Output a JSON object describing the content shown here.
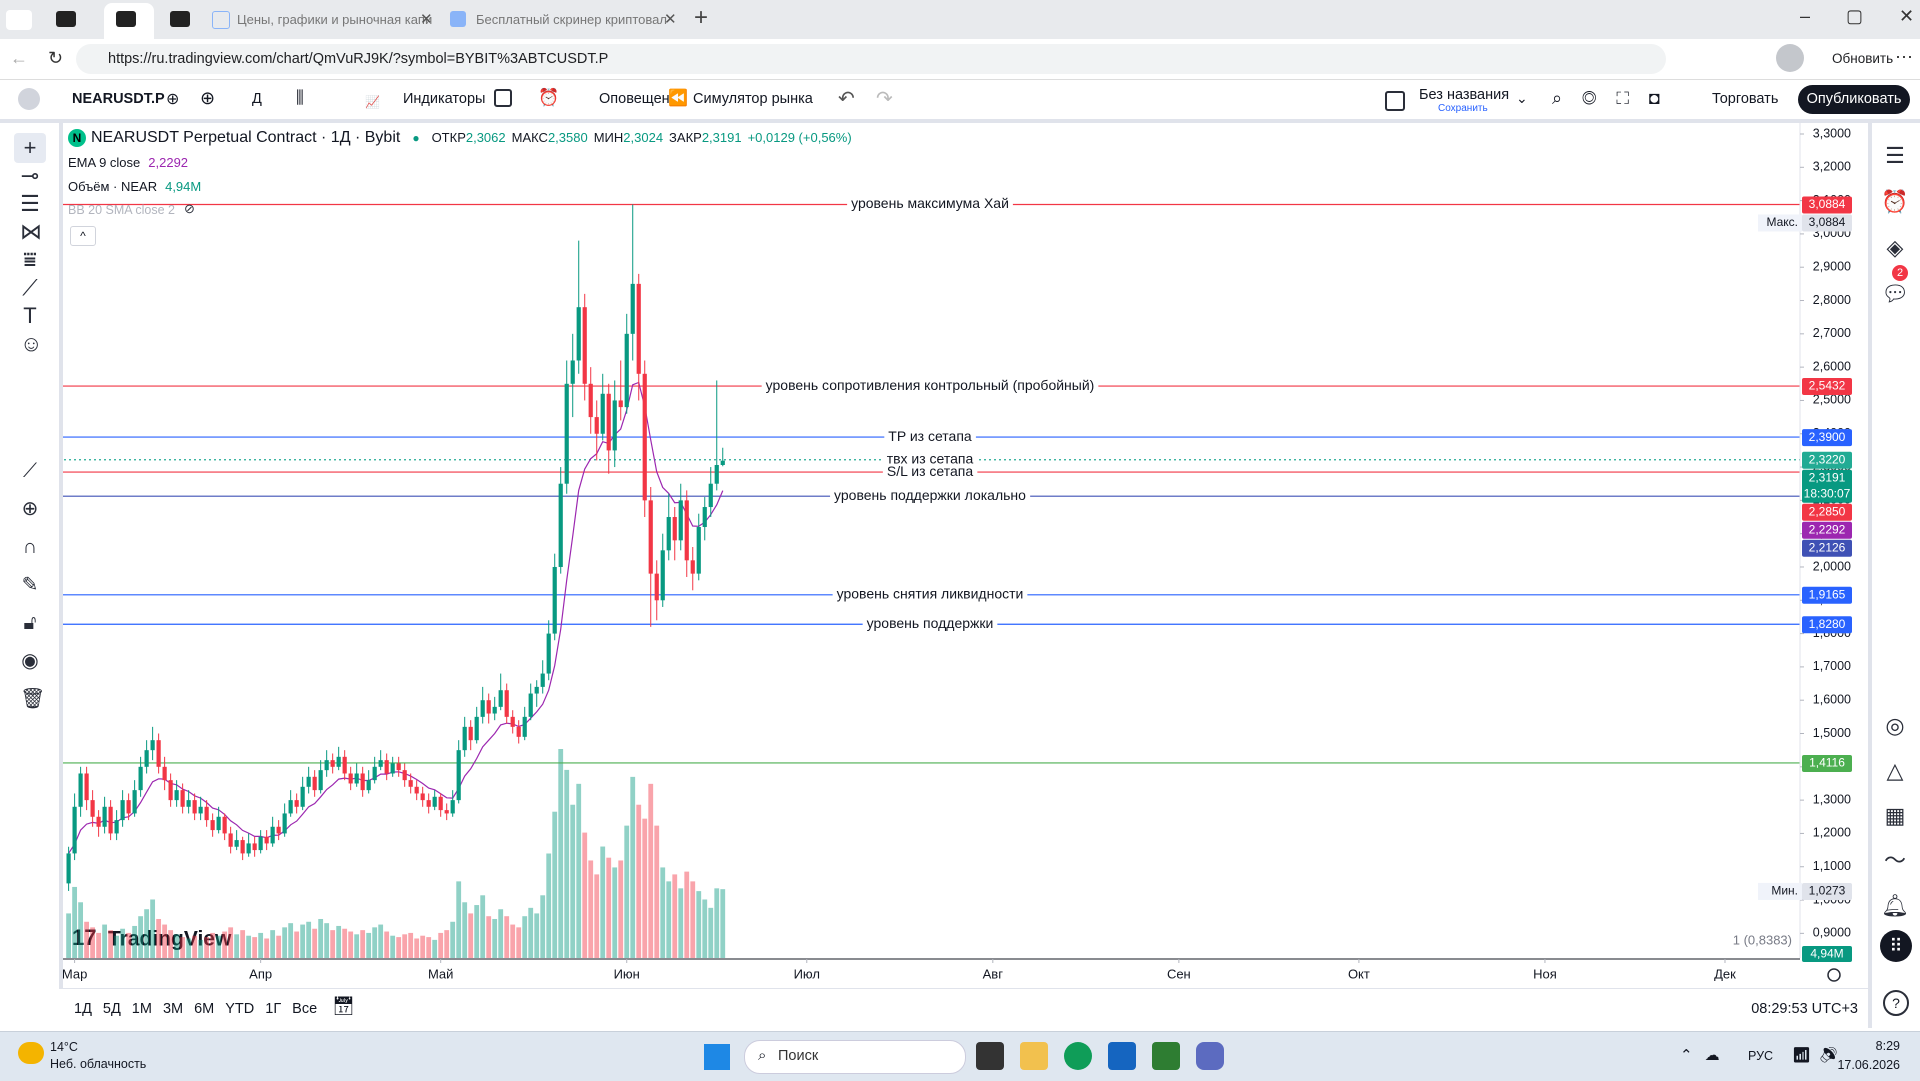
{
  "browser": {
    "tabs": [
      "Цены, графики и рыночная капи",
      "Бесплатный скринер криптовал"
    ],
    "url": "https://ru.tradingview.com/chart/QmVuRJ9K/?symbol=BYBIT%3ABTCUSDT.P",
    "update": "Обновить"
  },
  "toolbar": {
    "symbol": "NEARUSDT.P",
    "interval": "Д",
    "indicators": "Индикаторы",
    "alerts": "Оповещения",
    "replay": "Симулятор рынка",
    "layout_name": "Без названия",
    "save": "Сохранить",
    "trade": "Торговать",
    "publish": "Опубликовать"
  },
  "legend": {
    "title": "NEARUSDT Perpetual Contract · 1Д · Bybit",
    "open_label": "ОТКР",
    "open": "2,3062",
    "high_label": "МАКС",
    "high": "2,3580",
    "low_label": "МИН",
    "low": "2,3024",
    "close_label": "ЗАКР",
    "close": "2,3191",
    "change": "+0,0129 (+0,56%)",
    "ema": "EMA 9 close",
    "ema_value": "2,2292",
    "volume": "Объём · NEAR",
    "volume_value": "4,94M",
    "bb": "BB 20 SMA close 2"
  },
  "chart_data": {
    "type": "candlestick",
    "watermark": "TradingView",
    "up_color": "#089981",
    "down_color": "#f23645",
    "xlim": [
      -1.6,
      288.5
    ],
    "xticks": [
      {
        "value": 1,
        "label": "Мар"
      },
      {
        "value": 32,
        "label": "Апр"
      },
      {
        "value": 62,
        "label": "Май"
      },
      {
        "value": 93,
        "label": "Июн"
      },
      {
        "value": 123,
        "label": "Июл"
      },
      {
        "value": 154,
        "label": "Авг"
      },
      {
        "value": 185,
        "label": "Сен"
      },
      {
        "value": 215,
        "label": "Окт"
      },
      {
        "value": 246,
        "label": "Ноя"
      },
      {
        "value": 276,
        "label": "Дек"
      }
    ],
    "ylim": [
      0.826,
      3.336
    ],
    "yticks": [
      {
        "value": 0.9,
        "label": "0,9000"
      },
      {
        "value": 1.0,
        "label": "1,0000"
      },
      {
        "value": 1.1,
        "label": "1,1000"
      },
      {
        "value": 1.2,
        "label": "1,2000"
      },
      {
        "value": 1.3,
        "label": "1,3000"
      },
      {
        "value": 1.4,
        "label": "1,4000"
      },
      {
        "value": 1.5,
        "label": "1,5000"
      },
      {
        "value": 1.6,
        "label": "1,6000"
      },
      {
        "value": 1.7,
        "label": "1,7000"
      },
      {
        "value": 1.8,
        "label": "1,8000"
      },
      {
        "value": 1.9,
        "label": "1,9000"
      },
      {
        "value": 2.0,
        "label": "2,0000"
      },
      {
        "value": 2.1,
        "label": "2,1000"
      },
      {
        "value": 2.2,
        "label": "2,2000"
      },
      {
        "value": 2.3,
        "label": "2,3000"
      },
      {
        "value": 2.4,
        "label": "2,4000"
      },
      {
        "value": 2.5,
        "label": "2,5000"
      },
      {
        "value": 2.6,
        "label": "2,6000"
      },
      {
        "value": 2.7,
        "label": "2,7000"
      },
      {
        "value": 2.8,
        "label": "2,8000"
      },
      {
        "value": 2.9,
        "label": "2,9000"
      },
      {
        "value": 3.0,
        "label": "3,0000"
      },
      {
        "value": 3.1,
        "label": "3,1000"
      },
      {
        "value": 3.2,
        "label": "3,2000"
      },
      {
        "value": 3.3,
        "label": "3,3000"
      }
    ],
    "candles": [
      [
        1.05,
        1.16,
        1.0273,
        1.14
      ],
      [
        1.14,
        1.32,
        1.12,
        1.28
      ],
      [
        1.28,
        1.4,
        1.25,
        1.38
      ],
      [
        1.38,
        1.4,
        1.27,
        1.3
      ],
      [
        1.3,
        1.33,
        1.22,
        1.25
      ],
      [
        1.25,
        1.27,
        1.19,
        1.22
      ],
      [
        1.22,
        1.31,
        1.2,
        1.28
      ],
      [
        1.28,
        1.3,
        1.18,
        1.2
      ],
      [
        1.2,
        1.27,
        1.18,
        1.24
      ],
      [
        1.24,
        1.33,
        1.22,
        1.3
      ],
      [
        1.3,
        1.32,
        1.24,
        1.26
      ],
      [
        1.26,
        1.36,
        1.25,
        1.33
      ],
      [
        1.33,
        1.43,
        1.31,
        1.4
      ],
      [
        1.4,
        1.48,
        1.38,
        1.45
      ],
      [
        1.45,
        1.52,
        1.42,
        1.48
      ],
      [
        1.48,
        1.5,
        1.38,
        1.4
      ],
      [
        1.4,
        1.43,
        1.33,
        1.36
      ],
      [
        1.36,
        1.38,
        1.28,
        1.3
      ],
      [
        1.3,
        1.36,
        1.28,
        1.33
      ],
      [
        1.33,
        1.35,
        1.26,
        1.28
      ],
      [
        1.28,
        1.33,
        1.26,
        1.3
      ],
      [
        1.3,
        1.32,
        1.24,
        1.26
      ],
      [
        1.26,
        1.31,
        1.24,
        1.28
      ],
      [
        1.28,
        1.3,
        1.22,
        1.24
      ],
      [
        1.24,
        1.26,
        1.19,
        1.21
      ],
      [
        1.21,
        1.28,
        1.2,
        1.25
      ],
      [
        1.25,
        1.26,
        1.18,
        1.2
      ],
      [
        1.2,
        1.22,
        1.14,
        1.16
      ],
      [
        1.16,
        1.21,
        1.15,
        1.18
      ],
      [
        1.18,
        1.19,
        1.12,
        1.14
      ],
      [
        1.14,
        1.2,
        1.13,
        1.17
      ],
      [
        1.17,
        1.19,
        1.13,
        1.15
      ],
      [
        1.15,
        1.21,
        1.14,
        1.19
      ],
      [
        1.19,
        1.21,
        1.15,
        1.17
      ],
      [
        1.17,
        1.25,
        1.16,
        1.22
      ],
      [
        1.22,
        1.24,
        1.18,
        1.2
      ],
      [
        1.2,
        1.29,
        1.19,
        1.26
      ],
      [
        1.26,
        1.33,
        1.25,
        1.3
      ],
      [
        1.3,
        1.32,
        1.26,
        1.28
      ],
      [
        1.28,
        1.37,
        1.27,
        1.34
      ],
      [
        1.34,
        1.4,
        1.32,
        1.37
      ],
      [
        1.37,
        1.39,
        1.31,
        1.33
      ],
      [
        1.33,
        1.42,
        1.32,
        1.39
      ],
      [
        1.39,
        1.45,
        1.37,
        1.42
      ],
      [
        1.42,
        1.44,
        1.38,
        1.4
      ],
      [
        1.4,
        1.46,
        1.39,
        1.43
      ],
      [
        1.43,
        1.45,
        1.36,
        1.38
      ],
      [
        1.38,
        1.4,
        1.33,
        1.35
      ],
      [
        1.35,
        1.41,
        1.34,
        1.38
      ],
      [
        1.38,
        1.4,
        1.31,
        1.33
      ],
      [
        1.33,
        1.39,
        1.32,
        1.36
      ],
      [
        1.36,
        1.43,
        1.35,
        1.4
      ],
      [
        1.4,
        1.45,
        1.39,
        1.42
      ],
      [
        1.42,
        1.44,
        1.36,
        1.38
      ],
      [
        1.38,
        1.43,
        1.37,
        1.41
      ],
      [
        1.41,
        1.43,
        1.37,
        1.39
      ],
      [
        1.39,
        1.41,
        1.34,
        1.36
      ],
      [
        1.36,
        1.38,
        1.32,
        1.34
      ],
      [
        1.34,
        1.36,
        1.3,
        1.32
      ],
      [
        1.32,
        1.34,
        1.28,
        1.3
      ],
      [
        1.3,
        1.32,
        1.26,
        1.28
      ],
      [
        1.28,
        1.33,
        1.27,
        1.31
      ],
      [
        1.31,
        1.32,
        1.25,
        1.27
      ],
      [
        1.27,
        1.29,
        1.24,
        1.26
      ],
      [
        1.26,
        1.33,
        1.25,
        1.3
      ],
      [
        1.3,
        1.48,
        1.29,
        1.45
      ],
      [
        1.45,
        1.55,
        1.43,
        1.52
      ],
      [
        1.52,
        1.54,
        1.45,
        1.48
      ],
      [
        1.48,
        1.58,
        1.47,
        1.55
      ],
      [
        1.55,
        1.64,
        1.53,
        1.6
      ],
      [
        1.6,
        1.62,
        1.53,
        1.56
      ],
      [
        1.56,
        1.61,
        1.54,
        1.58
      ],
      [
        1.58,
        1.68,
        1.57,
        1.63
      ],
      [
        1.63,
        1.65,
        1.53,
        1.55
      ],
      [
        1.55,
        1.57,
        1.5,
        1.52
      ],
      [
        1.52,
        1.54,
        1.47,
        1.49
      ],
      [
        1.49,
        1.58,
        1.48,
        1.55
      ],
      [
        1.55,
        1.65,
        1.54,
        1.62
      ],
      [
        1.62,
        1.66,
        1.58,
        1.64
      ],
      [
        1.64,
        1.72,
        1.62,
        1.68
      ],
      [
        1.68,
        1.84,
        1.66,
        1.8
      ],
      [
        1.8,
        2.04,
        1.78,
        2.0
      ],
      [
        2.0,
        2.3,
        1.98,
        2.25
      ],
      [
        2.25,
        2.62,
        2.22,
        2.55
      ],
      [
        2.55,
        2.7,
        2.45,
        2.62
      ],
      [
        2.62,
        2.98,
        2.58,
        2.78
      ],
      [
        2.78,
        2.82,
        2.5,
        2.55
      ],
      [
        2.55,
        2.6,
        2.4,
        2.45
      ],
      [
        2.45,
        2.5,
        2.32,
        2.4
      ],
      [
        2.4,
        2.58,
        2.38,
        2.52
      ],
      [
        2.52,
        2.55,
        2.28,
        2.35
      ],
      [
        2.35,
        2.56,
        2.3,
        2.5
      ],
      [
        2.5,
        2.62,
        2.44,
        2.48
      ],
      [
        2.48,
        2.76,
        2.46,
        2.7
      ],
      [
        2.7,
        3.0884,
        2.62,
        2.85
      ],
      [
        2.85,
        2.88,
        2.5,
        2.58
      ],
      [
        2.58,
        2.62,
        2.15,
        2.2
      ],
      [
        2.2,
        2.24,
        1.82,
        1.98
      ],
      [
        1.98,
        2.02,
        1.84,
        1.9
      ],
      [
        1.9,
        2.1,
        1.88,
        2.05
      ],
      [
        2.05,
        2.22,
        2.02,
        2.15
      ],
      [
        2.15,
        2.18,
        2.02,
        2.08
      ],
      [
        2.08,
        2.25,
        2.05,
        2.2
      ],
      [
        2.2,
        2.23,
        1.97,
        2.02
      ],
      [
        2.02,
        2.06,
        1.93,
        1.98
      ],
      [
        1.98,
        2.16,
        1.96,
        2.12
      ],
      [
        2.12,
        2.21,
        2.08,
        2.18
      ],
      [
        2.18,
        2.3,
        2.15,
        2.25
      ],
      [
        2.25,
        2.56,
        2.23,
        2.3062
      ],
      [
        2.3062,
        2.358,
        2.3024,
        2.3191
      ]
    ],
    "vlim": [
      0,
      18
    ],
    "volume": [
      3.2,
      5.1,
      4.0,
      2.6,
      2.2,
      1.8,
      2.4,
      2.0,
      1.6,
      2.1,
      1.8,
      2.3,
      3.0,
      3.5,
      4.2,
      2.8,
      2.4,
      2.0,
      1.7,
      1.5,
      1.4,
      1.6,
      1.3,
      1.5,
      1.8,
      1.6,
      1.9,
      2.2,
      1.7,
      2.0,
      1.6,
      1.5,
      1.8,
      1.4,
      2.0,
      1.6,
      2.2,
      2.5,
      1.9,
      2.4,
      2.6,
      2.1,
      2.8,
      2.5,
      2.0,
      2.3,
      2.1,
      1.9,
      1.7,
      2.0,
      1.8,
      2.2,
      2.4,
      1.9,
      1.6,
      1.5,
      1.7,
      1.8,
      1.4,
      1.6,
      1.5,
      1.3,
      1.8,
      2.0,
      2.6,
      5.5,
      4.0,
      3.2,
      3.8,
      4.5,
      3.0,
      2.8,
      3.5,
      3.0,
      2.4,
      2.2,
      3.0,
      3.6,
      3.2,
      4.5,
      7.5,
      10.5,
      15.0,
      13.5,
      11.0,
      12.5,
      9.0,
      7.0,
      6.0,
      8.0,
      7.2,
      6.5,
      7.0,
      9.5,
      13.0,
      11.0,
      10.0,
      12.5,
      9.5,
      6.5,
      5.5,
      6.0,
      5.0,
      6.2,
      5.5,
      4.8,
      4.2,
      3.6,
      5.0,
      4.94
    ],
    "ema": {
      "color": "#9c27b0",
      "values": [
        1.14,
        1.168,
        1.21,
        1.228,
        1.233,
        1.23,
        1.24,
        1.232,
        1.234,
        1.247,
        1.25,
        1.266,
        1.293,
        1.324,
        1.355,
        1.364,
        1.363,
        1.35,
        1.346,
        1.333,
        1.326,
        1.313,
        1.306,
        1.293,
        1.276,
        1.271,
        1.257,
        1.238,
        1.226,
        1.209,
        1.201,
        1.191,
        1.191,
        1.187,
        1.194,
        1.195,
        1.208,
        1.226,
        1.237,
        1.258,
        1.28,
        1.29,
        1.31,
        1.332,
        1.346,
        1.363,
        1.366,
        1.363,
        1.366,
        1.359,
        1.359,
        1.367,
        1.378,
        1.378,
        1.384,
        1.385,
        1.38,
        1.372,
        1.362,
        1.35,
        1.336,
        1.331,
        1.319,
        1.307,
        1.306,
        1.335,
        1.372,
        1.394,
        1.425,
        1.46,
        1.48,
        1.5,
        1.526,
        1.531,
        1.529,
        1.521,
        1.527,
        1.546,
        1.565,
        1.588,
        1.63,
        1.704,
        1.813,
        1.96,
        2.092,
        2.23,
        2.294,
        2.325,
        2.34,
        2.376,
        2.371,
        2.397,
        2.414,
        2.471,
        2.547,
        2.554,
        2.483,
        2.382,
        2.286,
        2.239,
        2.221,
        2.193,
        2.194,
        2.159,
        2.123,
        2.122,
        2.134,
        2.157,
        2.187,
        2.2292
      ]
    },
    "levels": [
      {
        "name": "уровень максимума Хай",
        "value": 3.0884,
        "label": "3,0884",
        "color": "#f23645",
        "style": "solid"
      },
      {
        "name": "уровень сопротивления контрольный (пробойный)",
        "value": 2.5432,
        "label": "2,5432",
        "color": "#f23645",
        "style": "solid"
      },
      {
        "name": "TP из сетапа",
        "value": 2.39,
        "label": "2,3900",
        "color": "#2962ff",
        "style": "solid"
      },
      {
        "name": "твх из сетапа",
        "value": 2.322,
        "label": "2,3220",
        "color": "#22ab94",
        "style": "dotted"
      },
      {
        "name": "S/L из сетапа",
        "value": 2.285,
        "label": "2,2850",
        "color": "#f23645",
        "style": "solid"
      },
      {
        "name": "уровень поддержки локально",
        "value": 2.2126,
        "label": "2,2126",
        "color": "#3f51b5",
        "style": "solid"
      },
      {
        "name": "уровень снятия ликвидности",
        "value": 1.9165,
        "label": "1,9165",
        "color": "#2962ff",
        "style": "solid"
      },
      {
        "name": "уровень поддержки",
        "value": 1.828,
        "label": "1,8280",
        "color": "#2962ff",
        "style": "solid"
      },
      {
        "value": 1.4116,
        "label": "1,4116",
        "color": "#4caf50",
        "style": "solid"
      }
    ],
    "last_price": {
      "label": "2,3191",
      "countdown": "18:30:07"
    },
    "high_marker": {
      "label": "Макс.",
      "value": 3.0884,
      "value_label": "3,0884"
    },
    "low_marker": {
      "label": "Мин.",
      "value": 1.0273,
      "value_label": "1,0273"
    },
    "scale_note": "1 (0,8383)"
  },
  "bottom_bar": {
    "ranges": [
      "1Д",
      "5Д",
      "1М",
      "3М",
      "6М",
      "YTD",
      "1Г",
      "Все"
    ],
    "clock": "08:29:53 UTC+3"
  },
  "taskbar": {
    "temperature": "14°C",
    "weather": "Неб. облачность",
    "search": "Поиск",
    "language": "РУС",
    "time": "8:29",
    "date": "17.06.2026"
  }
}
